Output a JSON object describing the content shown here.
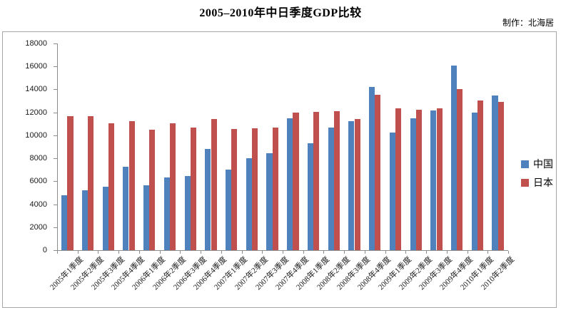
{
  "title": "2005–2010年中日季度GDP比较",
  "credit": "制作：北海居",
  "legend": {
    "china": "中国",
    "japan": "日本"
  },
  "chart_data": {
    "type": "bar",
    "title": "2005–2010年中日季度GDP比较",
    "categories": [
      "2005年1季度",
      "2005年2季度",
      "2005年3季度",
      "2005年4季度",
      "2006年1季度",
      "2006年2季度",
      "2006年3季度",
      "2006年4季度",
      "2007年1季度",
      "2007年2季度",
      "2007年3季度",
      "2007年4季度",
      "2008年1季度",
      "2008年2季度",
      "2008年3季度",
      "2008年4季度",
      "2009年1季度",
      "2009年2季度",
      "2009年3季度",
      "2009年4季度",
      "2010年1季度",
      "2010年2季度"
    ],
    "series": [
      {
        "name": "中国",
        "color": "#4F81BD",
        "values": [
          4800,
          5200,
          5500,
          7250,
          5650,
          6300,
          6450,
          8800,
          7000,
          8000,
          8450,
          11500,
          9300,
          10650,
          11250,
          14200,
          10250,
          11500,
          12150,
          16100,
          12000,
          13450
        ]
      },
      {
        "name": "日本",
        "color": "#C0504D",
        "values": [
          11650,
          11650,
          11050,
          11250,
          10500,
          11050,
          10650,
          11400,
          10550,
          10600,
          10650,
          12000,
          12050,
          12100,
          11400,
          13500,
          12350,
          12200,
          12350,
          14000,
          13050,
          12900
        ]
      }
    ],
    "xlabel": "",
    "ylabel": "",
    "ylim": [
      0,
      18000
    ],
    "ytick_step": 2000,
    "yticks": [
      "0",
      "2000",
      "4000",
      "6000",
      "8000",
      "10000",
      "12000",
      "14000",
      "16000",
      "18000"
    ],
    "grid": false,
    "legend_position": "middle-right",
    "x_label_rotation_deg": -45
  }
}
